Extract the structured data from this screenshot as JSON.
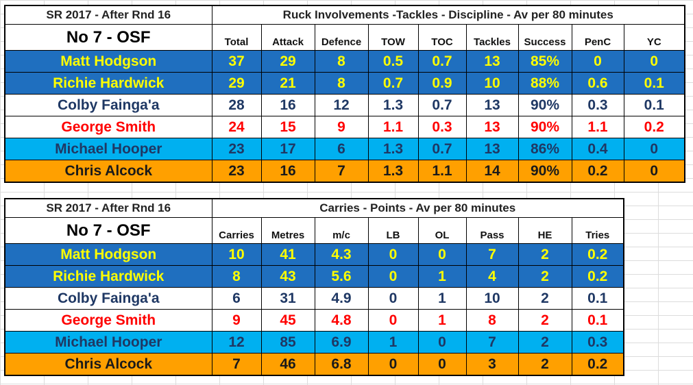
{
  "table1": {
    "corner_label": "SR 2017 - After Rnd 16",
    "title": "Ruck Involvements -Tackles - Discipline - Av per 80 minutes",
    "position_label": "No 7 - OSF",
    "columns": [
      "Total",
      "Attack",
      "Defence",
      "TOW",
      "TOC",
      "Tackles",
      "Success",
      "PenC",
      "YC"
    ],
    "rows": [
      {
        "name": "Matt Hodgson",
        "values": [
          "37",
          "29",
          "8",
          "0.5",
          "0.7",
          "13",
          "85%",
          "0",
          "0"
        ]
      },
      {
        "name": "Richie Hardwick",
        "values": [
          "29",
          "21",
          "8",
          "0.7",
          "0.9",
          "10",
          "88%",
          "0.6",
          "0.1"
        ]
      },
      {
        "name": "Colby Fainga'a",
        "values": [
          "28",
          "16",
          "12",
          "1.3",
          "0.7",
          "13",
          "90%",
          "0.3",
          "0.1"
        ]
      },
      {
        "name": "George Smith",
        "values": [
          "24",
          "15",
          "9",
          "1.1",
          "0.3",
          "13",
          "90%",
          "1.1",
          "0.2"
        ]
      },
      {
        "name": "Michael Hooper",
        "values": [
          "23",
          "17",
          "6",
          "1.3",
          "0.7",
          "13",
          "86%",
          "0.4",
          "0"
        ]
      },
      {
        "name": "Chris Alcock",
        "values": [
          "23",
          "16",
          "7",
          "1.3",
          "1.1",
          "14",
          "90%",
          "0.2",
          "0"
        ]
      }
    ]
  },
  "table2": {
    "corner_label": "SR 2017 - After Rnd 16",
    "title": "Carries - Points - Av per 80 minutes",
    "position_label": "No 7 - OSF",
    "columns": [
      "Carries",
      "Metres",
      "m/c",
      "LB",
      "OL",
      "Pass",
      "HE",
      "Tries"
    ],
    "rows": [
      {
        "name": "Matt Hodgson",
        "values": [
          "10",
          "41",
          "4.3",
          "0",
          "0",
          "7",
          "2",
          "0.2"
        ]
      },
      {
        "name": "Richie Hardwick",
        "values": [
          "8",
          "43",
          "5.6",
          "0",
          "1",
          "4",
          "2",
          "0.2"
        ]
      },
      {
        "name": "Colby Fainga'a",
        "values": [
          "6",
          "31",
          "4.9",
          "0",
          "1",
          "10",
          "2",
          "0.1"
        ]
      },
      {
        "name": "George Smith",
        "values": [
          "9",
          "45",
          "4.8",
          "0",
          "1",
          "8",
          "2",
          "0.1"
        ]
      },
      {
        "name": "Michael Hooper",
        "values": [
          "12",
          "85",
          "6.9",
          "1",
          "0",
          "7",
          "2",
          "0.3"
        ]
      },
      {
        "name": "Chris Alcock",
        "values": [
          "7",
          "46",
          "6.8",
          "0",
          "0",
          "3",
          "2",
          "0.2"
        ]
      }
    ]
  },
  "row_styles": [
    "r-blue",
    "r-blue",
    "r-white",
    "r-red",
    "r-lblue",
    "r-orange"
  ]
}
